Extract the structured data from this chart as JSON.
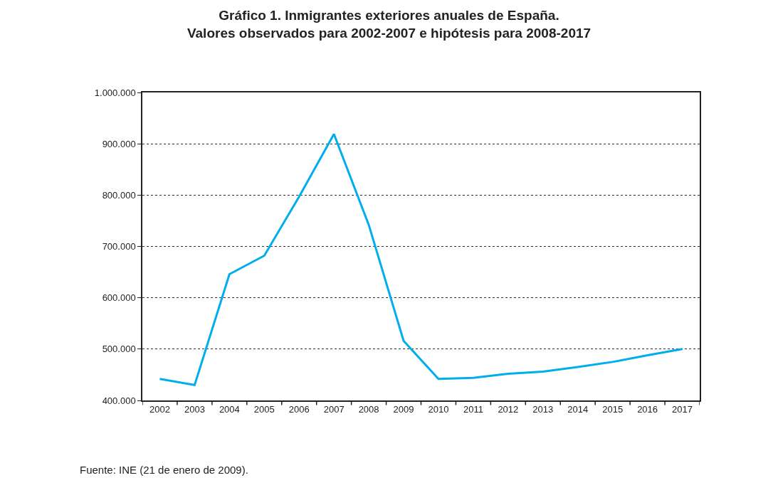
{
  "chart_data": {
    "type": "line",
    "title": "Gráfico 1. Inmigrantes exteriores anuales de España.\nValores observados para 2002-2007 e hipótesis para 2008-2017",
    "categories": [
      "2002",
      "2003",
      "2004",
      "2005",
      "2006",
      "2007",
      "2008",
      "2009",
      "2010",
      "2011",
      "2012",
      "2013",
      "2014",
      "2015",
      "2016",
      "2017"
    ],
    "series": [
      {
        "color": "#00aeef",
        "values": [
          442000,
          430000,
          646000,
          682000,
          797000,
          919000,
          742000,
          516000,
          442000,
          444000,
          452000,
          456000,
          465000,
          475000,
          488000,
          500000
        ]
      }
    ],
    "ylim": [
      400000,
      1000000
    ],
    "yticks": [
      {
        "value": 400000,
        "label": "400.000"
      },
      {
        "value": 500000,
        "label": "500.000"
      },
      {
        "value": 600000,
        "label": "600.000"
      },
      {
        "value": 700000,
        "label": "700.000"
      },
      {
        "value": 800000,
        "label": "800.000"
      },
      {
        "value": 900000,
        "label": "900.000"
      },
      {
        "value": 1000000,
        "label": "1.000.000"
      }
    ],
    "grid": "y",
    "marker": "none",
    "line_style": "solid",
    "annotations": [
      "Fuente: INE (21 de enero de 2009)."
    ]
  }
}
